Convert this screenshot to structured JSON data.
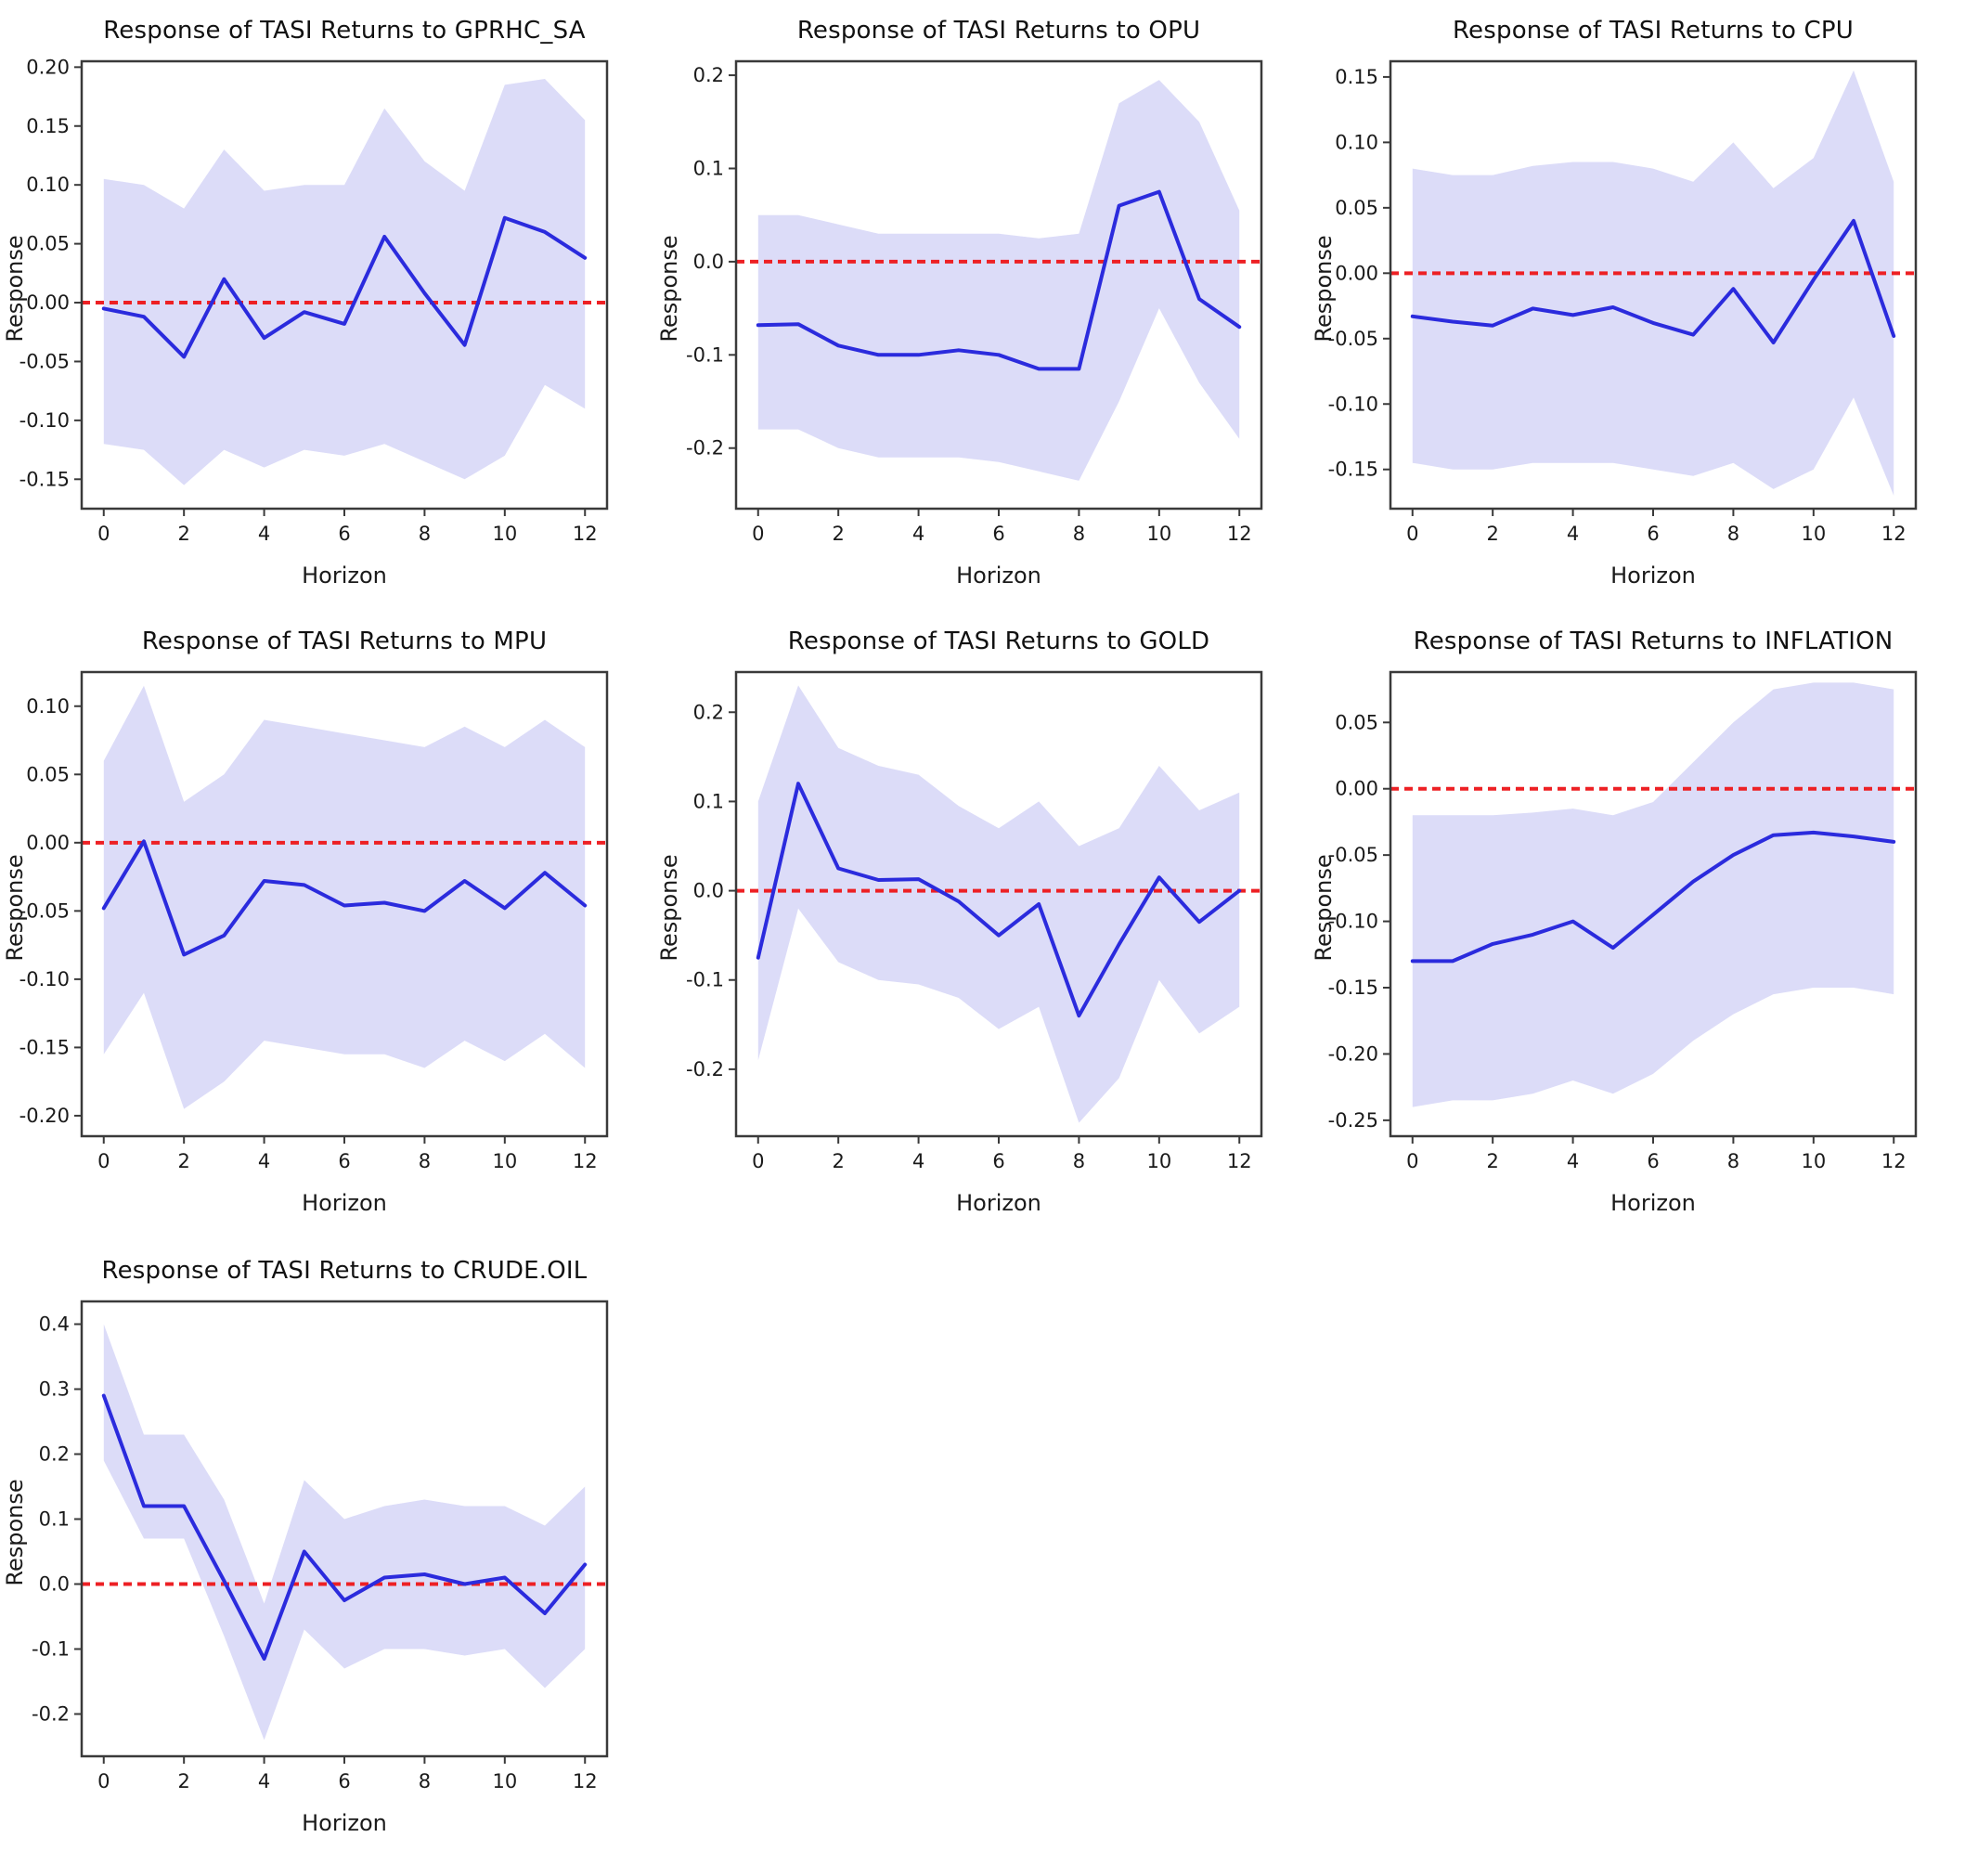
{
  "figure": {
    "background": "#ffffff",
    "line_color": "#2b2bdd",
    "band_color": "#dcdcf8",
    "zero_line_color": "#ed2024",
    "axis_color": "#3a3a3a"
  },
  "chart_data": [
    {
      "type": "line",
      "title": "Response of TASI Returns to GPRHC_SA",
      "xlabel": "Horizon",
      "ylabel": "Response",
      "x": [
        0,
        1,
        2,
        3,
        4,
        5,
        6,
        7,
        8,
        9,
        10,
        11,
        12
      ],
      "series": [
        {
          "name": "IRF",
          "color": "#2b2bdd",
          "values": [
            -0.005,
            -0.012,
            -0.046,
            0.02,
            -0.03,
            -0.008,
            -0.018,
            0.056,
            0.008,
            -0.036,
            0.072,
            0.06,
            0.038
          ]
        }
      ],
      "band": {
        "color": "#dcdcf8",
        "upper": [
          0.105,
          0.1,
          0.08,
          0.13,
          0.095,
          0.1,
          0.1,
          0.165,
          0.12,
          0.095,
          0.185,
          0.19,
          0.155
        ],
        "lower": [
          -0.12,
          -0.125,
          -0.155,
          -0.125,
          -0.14,
          -0.125,
          -0.13,
          -0.12,
          -0.135,
          -0.15,
          -0.13,
          -0.07,
          -0.09
        ]
      },
      "zero_line": {
        "y": 0,
        "color": "#ed2024",
        "style": "dashed"
      },
      "xticks": [
        0,
        2,
        4,
        6,
        8,
        10,
        12
      ],
      "yticks": [
        0.2,
        0.15,
        0.1,
        0.05,
        0.0,
        -0.05,
        -0.1,
        -0.15
      ],
      "ytick_labels": [
        "0.20",
        "0.15",
        "0.10",
        "0.05",
        "0.00",
        "-0.05",
        "-0.10",
        "-0.15"
      ],
      "xlim": [
        -0.55,
        12.55
      ],
      "ylim": [
        -0.175,
        0.205
      ],
      "grid": false,
      "legend": null
    },
    {
      "type": "line",
      "title": "Response of TASI Returns to OPU",
      "xlabel": "Horizon",
      "ylabel": "Response",
      "x": [
        0,
        1,
        2,
        3,
        4,
        5,
        6,
        7,
        8,
        9,
        10,
        11,
        12
      ],
      "series": [
        {
          "name": "IRF",
          "color": "#2b2bdd",
          "values": [
            -0.068,
            -0.067,
            -0.09,
            -0.1,
            -0.1,
            -0.095,
            -0.1,
            -0.115,
            -0.115,
            0.06,
            0.075,
            -0.04,
            -0.07
          ]
        }
      ],
      "band": {
        "color": "#dcdcf8",
        "upper": [
          0.05,
          0.05,
          0.04,
          0.03,
          0.03,
          0.03,
          0.03,
          0.025,
          0.03,
          0.17,
          0.195,
          0.15,
          0.055
        ],
        "lower": [
          -0.18,
          -0.18,
          -0.2,
          -0.21,
          -0.21,
          -0.21,
          -0.215,
          -0.225,
          -0.235,
          -0.15,
          -0.05,
          -0.13,
          -0.19
        ]
      },
      "zero_line": {
        "y": 0,
        "color": "#ed2024",
        "style": "dashed"
      },
      "xticks": [
        0,
        2,
        4,
        6,
        8,
        10,
        12
      ],
      "yticks": [
        0.2,
        0.1,
        0.0,
        -0.1,
        -0.2
      ],
      "ytick_labels": [
        "0.2",
        "0.1",
        "0.0",
        "-0.1",
        "-0.2"
      ],
      "xlim": [
        -0.55,
        12.55
      ],
      "ylim": [
        -0.265,
        0.215
      ],
      "grid": false,
      "legend": null
    },
    {
      "type": "line",
      "title": "Response of TASI Returns to CPU",
      "xlabel": "Horizon",
      "ylabel": "Response",
      "x": [
        0,
        1,
        2,
        3,
        4,
        5,
        6,
        7,
        8,
        9,
        10,
        11,
        12
      ],
      "series": [
        {
          "name": "IRF",
          "color": "#2b2bdd",
          "values": [
            -0.033,
            -0.037,
            -0.04,
            -0.027,
            -0.032,
            -0.026,
            -0.038,
            -0.047,
            -0.012,
            -0.053,
            -0.005,
            0.04,
            -0.048
          ]
        }
      ],
      "band": {
        "color": "#dcdcf8",
        "upper": [
          0.08,
          0.075,
          0.075,
          0.082,
          0.085,
          0.085,
          0.08,
          0.07,
          0.1,
          0.065,
          0.088,
          0.155,
          0.07
        ],
        "lower": [
          -0.145,
          -0.15,
          -0.15,
          -0.145,
          -0.145,
          -0.145,
          -0.15,
          -0.155,
          -0.145,
          -0.165,
          -0.15,
          -0.095,
          -0.17
        ]
      },
      "zero_line": {
        "y": 0,
        "color": "#ed2024",
        "style": "dashed"
      },
      "xticks": [
        0,
        2,
        4,
        6,
        8,
        10,
        12
      ],
      "yticks": [
        0.15,
        0.1,
        0.05,
        0.0,
        -0.05,
        -0.1,
        -0.15
      ],
      "ytick_labels": [
        "0.15",
        "0.10",
        "0.05",
        "0.00",
        "-0.05",
        "-0.10",
        "-0.15"
      ],
      "xlim": [
        -0.55,
        12.55
      ],
      "ylim": [
        -0.18,
        0.162
      ],
      "grid": false,
      "legend": null
    },
    {
      "type": "line",
      "title": "Response of TASI Returns to MPU",
      "xlabel": "Horizon",
      "ylabel": "Response",
      "x": [
        0,
        1,
        2,
        3,
        4,
        5,
        6,
        7,
        8,
        9,
        10,
        11,
        12
      ],
      "series": [
        {
          "name": "IRF",
          "color": "#2b2bdd",
          "values": [
            -0.048,
            0.001,
            -0.082,
            -0.068,
            -0.028,
            -0.031,
            -0.046,
            -0.044,
            -0.05,
            -0.028,
            -0.048,
            -0.022,
            -0.046
          ]
        }
      ],
      "band": {
        "color": "#dcdcf8",
        "upper": [
          0.06,
          0.115,
          0.03,
          0.05,
          0.09,
          0.085,
          0.08,
          0.075,
          0.07,
          0.085,
          0.07,
          0.09,
          0.07
        ],
        "lower": [
          -0.155,
          -0.11,
          -0.195,
          -0.175,
          -0.145,
          -0.15,
          -0.155,
          -0.155,
          -0.165,
          -0.145,
          -0.16,
          -0.14,
          -0.165
        ]
      },
      "zero_line": {
        "y": 0,
        "color": "#ed2024",
        "style": "dashed"
      },
      "xticks": [
        0,
        2,
        4,
        6,
        8,
        10,
        12
      ],
      "yticks": [
        0.1,
        0.05,
        0.0,
        -0.05,
        -0.1,
        -0.15,
        -0.2
      ],
      "ytick_labels": [
        "0.10",
        "0.05",
        "0.00",
        "-0.05",
        "-0.10",
        "-0.15",
        "-0.20"
      ],
      "xlim": [
        -0.55,
        12.55
      ],
      "ylim": [
        -0.215,
        0.125
      ],
      "grid": false,
      "legend": null
    },
    {
      "type": "line",
      "title": "Response of TASI Returns to GOLD",
      "xlabel": "Horizon",
      "ylabel": "Response",
      "x": [
        0,
        1,
        2,
        3,
        4,
        5,
        6,
        7,
        8,
        9,
        10,
        11,
        12
      ],
      "series": [
        {
          "name": "IRF",
          "color": "#2b2bdd",
          "values": [
            -0.075,
            0.12,
            0.025,
            0.012,
            0.013,
            -0.012,
            -0.05,
            -0.015,
            -0.14,
            -0.06,
            0.015,
            -0.035,
            0.0
          ]
        }
      ],
      "band": {
        "color": "#dcdcf8",
        "upper": [
          0.1,
          0.23,
          0.16,
          0.14,
          0.13,
          0.095,
          0.07,
          0.1,
          0.05,
          0.07,
          0.14,
          0.09,
          0.11
        ],
        "lower": [
          -0.19,
          -0.02,
          -0.08,
          -0.1,
          -0.105,
          -0.12,
          -0.155,
          -0.13,
          -0.26,
          -0.21,
          -0.1,
          -0.16,
          -0.13
        ]
      },
      "zero_line": {
        "y": 0,
        "color": "#ed2024",
        "style": "dashed"
      },
      "xticks": [
        0,
        2,
        4,
        6,
        8,
        10,
        12
      ],
      "yticks": [
        0.2,
        0.1,
        0.0,
        -0.1,
        -0.2
      ],
      "ytick_labels": [
        "0.2",
        "0.1",
        "0.0",
        "-0.1",
        "-0.2"
      ],
      "xlim": [
        -0.55,
        12.55
      ],
      "ylim": [
        -0.275,
        0.245
      ],
      "grid": false,
      "legend": null
    },
    {
      "type": "line",
      "title": "Response of TASI Returns to INFLATION",
      "xlabel": "Horizon",
      "ylabel": "Response",
      "x": [
        0,
        1,
        2,
        3,
        4,
        5,
        6,
        7,
        8,
        9,
        10,
        11,
        12
      ],
      "series": [
        {
          "name": "IRF",
          "color": "#2b2bdd",
          "values": [
            -0.13,
            -0.13,
            -0.117,
            -0.11,
            -0.1,
            -0.12,
            -0.095,
            -0.07,
            -0.05,
            -0.035,
            -0.033,
            -0.036,
            -0.04
          ]
        }
      ],
      "band": {
        "color": "#dcdcf8",
        "upper": [
          -0.02,
          -0.02,
          -0.02,
          -0.018,
          -0.015,
          -0.02,
          -0.01,
          0.02,
          0.05,
          0.075,
          0.08,
          0.08,
          0.075
        ],
        "lower": [
          -0.24,
          -0.235,
          -0.235,
          -0.23,
          -0.22,
          -0.23,
          -0.215,
          -0.19,
          -0.17,
          -0.155,
          -0.15,
          -0.15,
          -0.155
        ]
      },
      "zero_line": {
        "y": 0,
        "color": "#ed2024",
        "style": "dashed"
      },
      "xticks": [
        0,
        2,
        4,
        6,
        8,
        10,
        12
      ],
      "yticks": [
        0.05,
        0.0,
        -0.05,
        -0.1,
        -0.15,
        -0.2,
        -0.25
      ],
      "ytick_labels": [
        "0.05",
        "0.00",
        "-0.05",
        "-0.10",
        "-0.15",
        "-0.20",
        "-0.25"
      ],
      "xlim": [
        -0.55,
        12.55
      ],
      "ylim": [
        -0.262,
        0.088
      ],
      "grid": false,
      "legend": null
    },
    {
      "type": "line",
      "title": "Response of TASI Returns to CRUDE.OIL",
      "xlabel": "Horizon",
      "ylabel": "Response",
      "x": [
        0,
        1,
        2,
        3,
        4,
        5,
        6,
        7,
        8,
        9,
        10,
        11,
        12
      ],
      "series": [
        {
          "name": "IRF",
          "color": "#2b2bdd",
          "values": [
            0.29,
            0.12,
            0.12,
            0.005,
            -0.115,
            0.05,
            -0.025,
            0.01,
            0.015,
            0.0,
            0.01,
            -0.045,
            0.03
          ]
        }
      ],
      "band": {
        "color": "#dcdcf8",
        "upper": [
          0.4,
          0.23,
          0.23,
          0.13,
          -0.03,
          0.16,
          0.1,
          0.12,
          0.13,
          0.12,
          0.12,
          0.09,
          0.15
        ],
        "lower": [
          0.19,
          0.07,
          0.07,
          -0.08,
          -0.24,
          -0.07,
          -0.13,
          -0.1,
          -0.1,
          -0.11,
          -0.1,
          -0.16,
          -0.1
        ]
      },
      "zero_line": {
        "y": 0,
        "color": "#ed2024",
        "style": "dashed"
      },
      "xticks": [
        0,
        2,
        4,
        6,
        8,
        10,
        12
      ],
      "yticks": [
        0.4,
        0.3,
        0.2,
        0.1,
        0.0,
        -0.1,
        -0.2
      ],
      "ytick_labels": [
        "0.4",
        "0.3",
        "0.2",
        "0.1",
        "0.0",
        "-0.1",
        "-0.2"
      ],
      "xlim": [
        -0.55,
        12.55
      ],
      "ylim": [
        -0.265,
        0.435
      ],
      "grid": false,
      "legend": null
    }
  ]
}
